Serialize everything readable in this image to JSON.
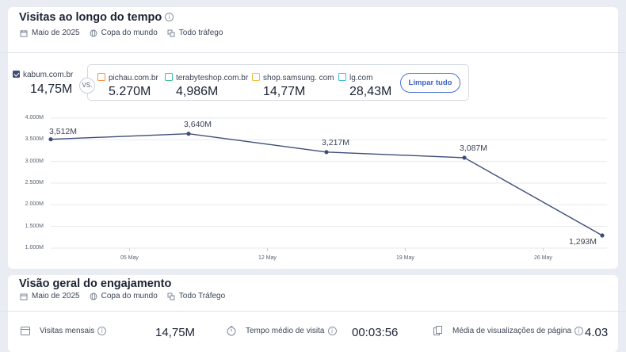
{
  "visits": {
    "title": "Visitas ao longo do tempo",
    "meta": {
      "date": "Maio de 2025",
      "region": "Copa do mundo",
      "traffic": "Todo tráfego"
    },
    "own_site": {
      "domain": "kabum.com.br",
      "value": "14,75M"
    },
    "vs_label": "VS.",
    "competitors": [
      {
        "domain": "pichau.com.br",
        "value": "5.270M",
        "color": "#f0914a"
      },
      {
        "domain": "terabyteshop.com.br",
        "value": "4,986M",
        "color": "#3fbf9b"
      },
      {
        "domain": "shop.samsung. com",
        "value": "14,77M",
        "color": "#f2bd3c"
      },
      {
        "domain": "lg.com",
        "value": "28,43M",
        "color": "#45b8d9"
      }
    ],
    "clear_button": "Limpar tudo",
    "line_color": "#3d4d77"
  },
  "chart_data": {
    "type": "line",
    "y_ticks": [
      "4.000M",
      "3.500M",
      "3.000M",
      "2.500M",
      "2.000M",
      "1.500M",
      "1.000M"
    ],
    "x_ticks": [
      "05 May",
      "12 May",
      "19 May",
      "26 May"
    ],
    "ylim": [
      1000000,
      4000000
    ],
    "series": [
      {
        "points": [
          {
            "date": "2025-05-01",
            "value": 3512000,
            "label": "3,512M"
          },
          {
            "date": "2025-05-08",
            "value": 3640000,
            "label": "3,640M"
          },
          {
            "date": "2025-05-15",
            "value": 3217000,
            "label": "3,217M"
          },
          {
            "date": "2025-05-22",
            "value": 3087000,
            "label": "3,087M"
          },
          {
            "date": "2025-05-29",
            "value": 1293000,
            "label": "1,293M"
          }
        ]
      }
    ],
    "grid": true
  },
  "engagement": {
    "title": "Visão geral do engajamento",
    "meta": {
      "date": "Maio de 2025",
      "region": "Copa do mundo",
      "traffic": "Todo Tráfego"
    },
    "metrics": [
      {
        "label": "Visitas mensais",
        "value": "14,75M",
        "icon": "calendar-icon"
      },
      {
        "label": "Tempo médio de visita",
        "value": "00:03:56",
        "icon": "stopwatch-icon"
      },
      {
        "label": "Média de visualizações de página",
        "value": "4.03",
        "icon": "pages-icon"
      }
    ]
  }
}
